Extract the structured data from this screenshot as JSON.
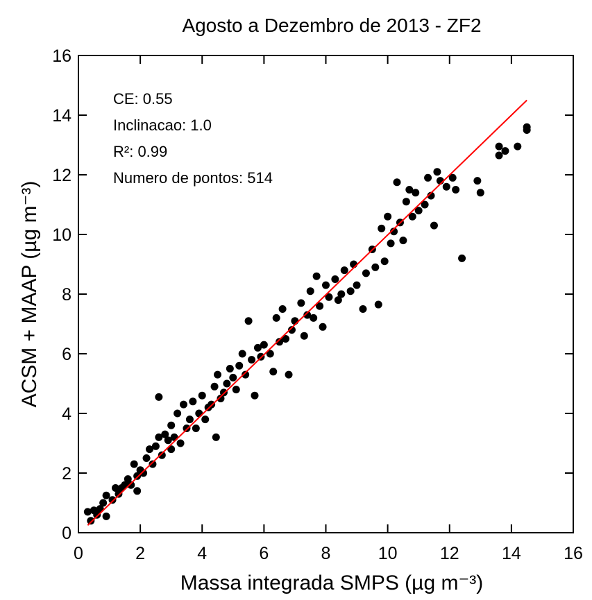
{
  "chart_data": {
    "type": "scatter",
    "title": "Agosto a Dezembro de 2013 - ZF2",
    "x_label": "Massa integrada SMPS (µg m⁻³)",
    "y_label": "ACSM + MAAP (µg m⁻³)",
    "annotations": [
      "CE: 0.55",
      "Inclinacao: 1.0",
      "R²: 0.99",
      "Numero de pontos: 514"
    ],
    "color": "#000000",
    "x": [
      0.3,
      0.4,
      0.5,
      0.6,
      0.7,
      0.8,
      0.9,
      0.9,
      1.1,
      1.2,
      1.3,
      1.4,
      1.5,
      1.6,
      1.7,
      1.8,
      1.9,
      1.9,
      2.0,
      2.1,
      2.2,
      2.3,
      2.4,
      2.5,
      2.6,
      2.6,
      2.7,
      2.8,
      2.9,
      3.0,
      3.0,
      3.1,
      3.2,
      3.3,
      3.4,
      3.5,
      3.6,
      3.7,
      3.8,
      3.9,
      4.0,
      4.1,
      4.2,
      4.3,
      4.4,
      4.45,
      4.5,
      4.6,
      4.7,
      4.8,
      4.9,
      5.0,
      5.1,
      5.2,
      5.3,
      5.4,
      5.5,
      5.6,
      5.7,
      5.8,
      5.9,
      6.0,
      6.2,
      6.3,
      6.4,
      6.5,
      6.6,
      6.7,
      6.8,
      6.9,
      7.0,
      7.2,
      7.3,
      7.4,
      7.5,
      7.6,
      7.7,
      7.8,
      7.9,
      8.0,
      8.1,
      8.3,
      8.4,
      8.5,
      8.6,
      8.8,
      8.9,
      9.0,
      9.2,
      9.3,
      9.5,
      9.6,
      9.7,
      9.8,
      9.9,
      10.0,
      10.1,
      10.2,
      10.3,
      10.4,
      10.5,
      10.6,
      10.7,
      10.8,
      10.9,
      11.0,
      11.2,
      11.3,
      11.4,
      11.5,
      11.6,
      11.7,
      11.9,
      12.1,
      12.2,
      12.4,
      12.9,
      13.0,
      13.6,
      13.6,
      13.8,
      14.2,
      14.5,
      14.5
    ],
    "y": [
      0.7,
      0.4,
      0.75,
      0.6,
      0.8,
      1.0,
      0.55,
      1.25,
      1.1,
      1.5,
      1.3,
      1.5,
      1.6,
      1.8,
      1.6,
      2.3,
      1.9,
      1.4,
      2.1,
      2.0,
      2.5,
      2.8,
      2.3,
      2.9,
      4.55,
      3.2,
      2.6,
      3.3,
      3.1,
      2.8,
      3.6,
      3.2,
      4.0,
      3.0,
      4.3,
      3.5,
      3.8,
      4.4,
      3.5,
      4.0,
      4.6,
      3.8,
      4.2,
      4.3,
      4.9,
      3.2,
      5.3,
      4.5,
      4.7,
      5.0,
      5.5,
      5.2,
      4.8,
      5.6,
      6.0,
      5.3,
      7.1,
      5.8,
      4.6,
      6.2,
      5.9,
      6.3,
      6.0,
      5.4,
      7.2,
      6.4,
      7.5,
      6.5,
      5.3,
      6.8,
      7.1,
      7.7,
      6.6,
      7.3,
      8.1,
      7.2,
      8.6,
      7.6,
      6.9,
      8.3,
      7.9,
      8.5,
      7.8,
      8.0,
      8.8,
      8.1,
      9.0,
      8.3,
      7.5,
      8.7,
      9.5,
      8.9,
      7.65,
      10.2,
      9.1,
      10.6,
      9.7,
      10.1,
      11.75,
      10.4,
      9.8,
      11.1,
      11.5,
      10.6,
      11.4,
      10.8,
      11.0,
      11.9,
      11.3,
      10.3,
      12.1,
      11.8,
      11.6,
      11.9,
      11.5,
      9.2,
      11.8,
      11.4,
      12.95,
      12.65,
      12.8,
      12.95,
      13.5,
      13.6
    ],
    "fit_line": {
      "x": [
        0.3,
        14.5
      ],
      "y": [
        0.25,
        14.5
      ],
      "color": "#ff0000"
    },
    "xlim": [
      0,
      16
    ],
    "xticks": [
      0,
      2,
      4,
      6,
      8,
      10,
      12,
      14,
      16
    ],
    "ylim": [
      0,
      16
    ],
    "yticks": [
      0,
      2,
      4,
      6,
      8,
      10,
      12,
      14,
      16
    ]
  }
}
